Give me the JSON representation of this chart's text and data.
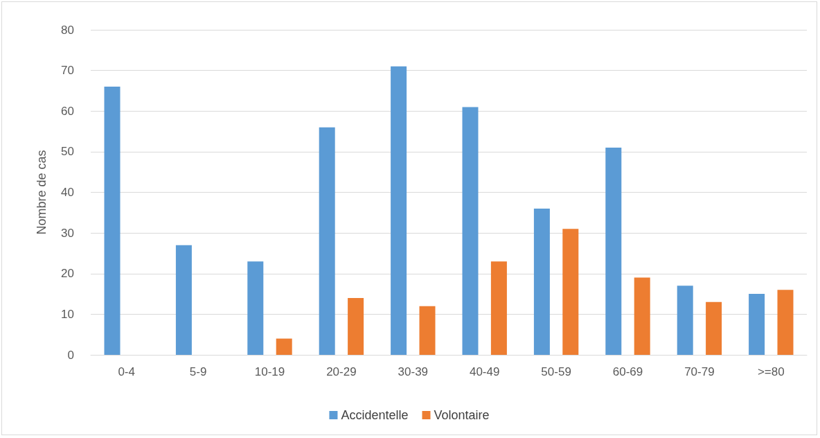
{
  "chart_data": {
    "type": "bar",
    "ylabel": "Nombre de cas",
    "categories": [
      "0-4",
      "5-9",
      "10-19",
      "20-29",
      "30-39",
      "40-49",
      "50-59",
      "60-69",
      "70-79",
      ">=80"
    ],
    "series": [
      {
        "name": "Accidentelle",
        "color": "#5b9bd5",
        "values": [
          66,
          27,
          23,
          56,
          71,
          61,
          36,
          51,
          17,
          15
        ]
      },
      {
        "name": "Volontaire",
        "color": "#ed7d31",
        "values": [
          0,
          0,
          4,
          14,
          12,
          23,
          31,
          19,
          13,
          16
        ]
      }
    ],
    "ylim": [
      0,
      80
    ],
    "yticks": [
      0,
      10,
      20,
      30,
      40,
      50,
      60,
      70,
      80
    ],
    "grid": "y",
    "legend": "bottom"
  }
}
